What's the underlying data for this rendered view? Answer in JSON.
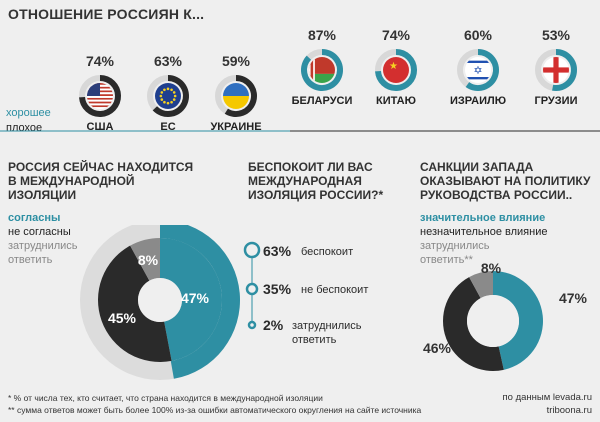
{
  "title": "ОТНОШЕНИЕ РОССИЯН К...",
  "legend": {
    "good": "хорошее",
    "bad": "плохое"
  },
  "colors": {
    "teal": "#2e8fa3",
    "dark": "#2a2a2a",
    "gray": "#8a8a8a",
    "light": "#d8d8d8"
  },
  "chart_data": [
    {
      "type": "pie",
      "title": "ОТНОШЕНИЕ РОССИЯН К...",
      "categories": [
        "США",
        "ЕС",
        "УКРАИНЕ",
        "БЕЛАРУСИ",
        "КИТАЮ",
        "ИЗРАИЛЮ",
        "ГРУЗИИ"
      ],
      "values": [
        74,
        63,
        59,
        87,
        74,
        60,
        53
      ],
      "value_labels": [
        "74%",
        "63%",
        "59%",
        "87%",
        "74%",
        "60%",
        "53%"
      ],
      "value_attitude": [
        "плохое",
        "плохое",
        "плохое",
        "хорошее",
        "хорошее",
        "хорошее",
        "хорошее"
      ],
      "icons": [
        "flag-usa",
        "flag-eu",
        "flag-ukraine",
        "flag-belarus",
        "flag-china",
        "flag-israel",
        "flag-georgia"
      ]
    },
    {
      "type": "pie",
      "title": "РОССИЯ СЕЙЧАС НАХОДИТСЯ В МЕЖДУНАРОДНОЙ ИЗОЛЯЦИИ",
      "legend": [
        "согласны",
        "не согласны",
        "затруднились ответить"
      ],
      "values": [
        47,
        45,
        8
      ],
      "value_labels": [
        "47%",
        "45%",
        "8%"
      ]
    },
    {
      "type": "bar",
      "title": "БЕСПОКОИТ ЛИ ВАС МЕЖДУНАРОДНАЯ ИЗОЛЯЦИЯ РОССИИ?*",
      "categories": [
        "беспокоит",
        "не беспокоит",
        "затруднились ответить"
      ],
      "values": [
        63,
        35,
        2
      ],
      "value_labels": [
        "63%",
        "35%",
        "2%"
      ]
    },
    {
      "type": "pie",
      "title": "САНКЦИИ ЗАПАДА ОКАЗЫВАЮТ НА ПОЛИТИКУ РУКОВОДСТВА РОССИИ..",
      "legend": [
        "значительное влияние",
        "незначительное влияние",
        "затруднились ответить**"
      ],
      "values": [
        47,
        46,
        8
      ],
      "value_labels": [
        "47%",
        "46%",
        "8%"
      ]
    }
  ],
  "q1": {
    "l1": "РОССИЯ СЕЙЧАС НАХОДИТСЯ",
    "l2": "В МЕЖДУНАРОДНОЙ",
    "l3": "ИЗОЛЯЦИИ",
    "agree": "согласны",
    "disagree": "не согласны",
    "undecided1": "затруднились",
    "undecided2": "ответить"
  },
  "q2": {
    "l1": "БЕСПОКОИТ ЛИ ВАС",
    "l2": "МЕЖДУНАРОДНАЯ",
    "l3": "ИЗОЛЯЦИЯ РОССИИ?*",
    "r1v": "63%",
    "r1l": "беспокоит",
    "r2v": "35%",
    "r2l": "не беспокоит",
    "r3v": "2%",
    "r3l1": "затруднились",
    "r3l2": "ответить"
  },
  "q3": {
    "l1": "САНКЦИИ ЗАПАДА",
    "l2": "ОКАЗЫВАЮТ НА ПОЛИТИКУ",
    "l3": "РУКОВОДСТВА РОССИИ..",
    "strong": "значительное влияние",
    "weak": "незначительное влияние",
    "undecided1": "затруднились",
    "undecided2": "ответить**"
  },
  "footer": {
    "n1": "* % от числа тех, кто считает, что страна находится в международной изоляции",
    "n2": "** сумма ответов может быть более 100% из-за ошибки автоматического округления на сайте источника",
    "src1": "по данным levada.ru",
    "src2": "triboona.ru"
  }
}
